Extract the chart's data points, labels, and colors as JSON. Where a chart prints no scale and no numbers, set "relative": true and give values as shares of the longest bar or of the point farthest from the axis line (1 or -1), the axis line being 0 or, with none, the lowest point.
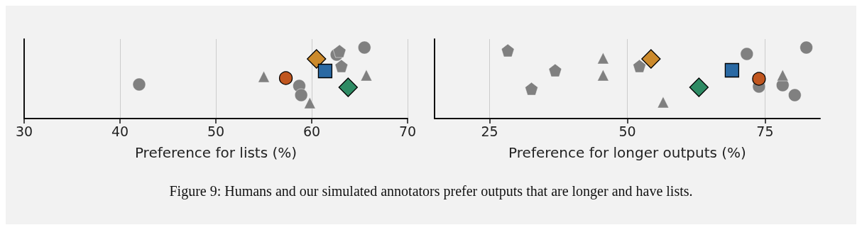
{
  "chart_data": [
    {
      "type": "scatter",
      "xlabel": "Preference for lists (%)",
      "xlim": [
        30,
        70
      ],
      "xticks": [
        30,
        40,
        50,
        60,
        70
      ],
      "grid": "x",
      "relative": true,
      "annotations": [
        "Figure 9: Humans and our simulated annotators prefer outputs that are longer and have lists."
      ],
      "series": [
        {
          "color": "#808080",
          "marker": "circle",
          "x": [
            42.0,
            58.7,
            58.9,
            65.5,
            62.6
          ],
          "values": [
            0.48,
            0.46,
            0.33,
            1.0,
            0.9
          ]
        },
        {
          "color": "#808080",
          "marker": "triangle",
          "x": [
            55.0,
            59.8,
            65.7
          ],
          "values": [
            0.59,
            0.22,
            0.61
          ]
        },
        {
          "color": "#808080",
          "x": [
            62.9,
            63.1
          ],
          "values": [
            0.95,
            0.74
          ]
        },
        {
          "color": "#c0561f",
          "marker": "circle",
          "x": [
            57.3
          ],
          "values": [
            0.57
          ]
        },
        {
          "color": "#cc8a2c",
          "marker": "diamond",
          "x": [
            60.5
          ],
          "values": [
            0.84
          ]
        },
        {
          "color": "#2a69a3",
          "marker": "square",
          "x": [
            61.4
          ],
          "values": [
            0.67
          ]
        },
        {
          "color": "#2e8b64",
          "marker": "diamond",
          "x": [
            63.8
          ],
          "values": [
            0.44
          ]
        }
      ]
    },
    {
      "type": "scatter",
      "xlabel": "Preference for longer outputs (%)",
      "xlim": [
        15,
        85
      ],
      "xticks": [
        25,
        50,
        75
      ],
      "grid": "x",
      "relative": true,
      "series": [
        {
          "color": "#808080",
          "marker": "circle",
          "x": [
            71.7,
            82.5,
            73.9,
            78.2,
            80.4
          ],
          "values": [
            0.91,
            1.0,
            0.45,
            0.47,
            0.33
          ]
        },
        {
          "color": "#808080",
          "marker": "triangle",
          "x": [
            45.6,
            45.6,
            56.5,
            78.2
          ],
          "values": [
            0.85,
            0.61,
            0.23,
            0.61
          ]
        },
        {
          "color": "#808080",
          "x": [
            28.3,
            32.6,
            36.9,
            52.2
          ],
          "values": [
            0.96,
            0.42,
            0.68,
            0.74
          ]
        },
        {
          "color": "#c0561f",
          "marker": "circle",
          "x": [
            73.9
          ],
          "values": [
            0.56
          ]
        },
        {
          "color": "#cc8a2c",
          "marker": "diamond",
          "x": [
            54.3
          ],
          "values": [
            0.84
          ]
        },
        {
          "color": "#2a69a3",
          "marker": "square",
          "x": [
            69.0
          ],
          "values": [
            0.68
          ]
        },
        {
          "color": "#2e8b64",
          "marker": "diamond",
          "x": [
            63.0
          ],
          "values": [
            0.44
          ]
        }
      ]
    }
  ]
}
